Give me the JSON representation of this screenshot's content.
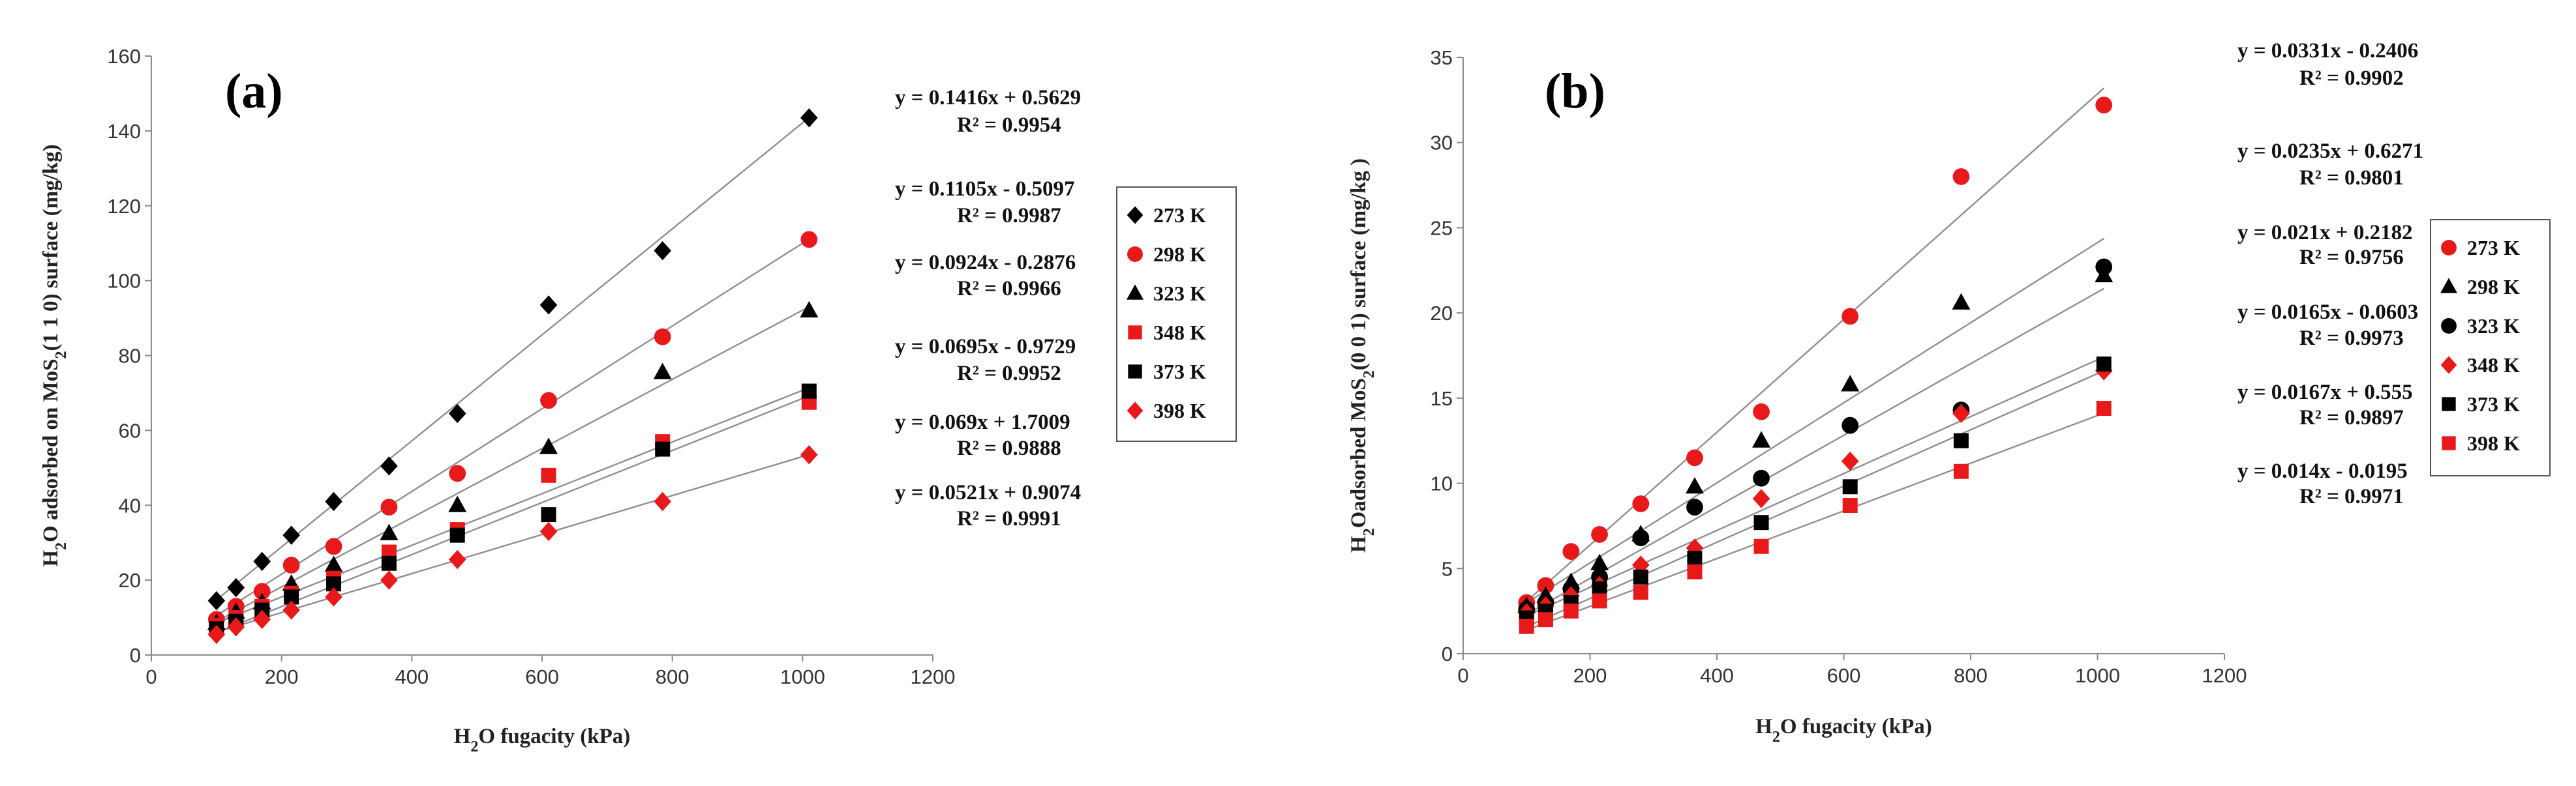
{
  "chart_data": [
    {
      "type": "scatter",
      "panel_label": "(a)",
      "xlabel_parts": [
        "H",
        "2",
        "O fugacity (kPa)"
      ],
      "ylabel_parts": [
        "H",
        "2",
        "O adsorbed on MoS",
        "2",
        "(1 1 0) surface (mg/kg)"
      ],
      "xlim": [
        0,
        1200
      ],
      "ylim": [
        0,
        160
      ],
      "xticks": [
        0,
        200,
        400,
        600,
        800,
        1000,
        1200
      ],
      "yticks": [
        0,
        20,
        40,
        60,
        80,
        100,
        120,
        140,
        160
      ],
      "series": [
        {
          "name": "273 K",
          "marker": "diamond",
          "color": "#000000",
          "x": [
            100,
            130,
            170,
            215,
            280,
            365,
            470,
            610,
            785,
            1010
          ],
          "y": [
            14.5,
            18,
            25,
            32,
            41,
            50.5,
            64.5,
            93.5,
            108,
            143.5
          ],
          "slope": 0.1416,
          "intercept": 0.5629,
          "equation": "y = 0.1416x + 0.5629",
          "r2": "R² = 0.9954"
        },
        {
          "name": "298 K",
          "marker": "circle",
          "color": "#e8191b",
          "x": [
            100,
            130,
            170,
            215,
            280,
            365,
            470,
            610,
            785,
            1010
          ],
          "y": [
            9.5,
            13,
            17,
            24,
            29,
            39.5,
            48.5,
            68,
            85,
            111
          ],
          "slope": 0.1105,
          "intercept": -0.5097,
          "equation": "y = 0.1105x - 0.5097",
          "r2": "R² = 0.9987"
        },
        {
          "name": "323 K",
          "marker": "triangle",
          "color": "#000000",
          "x": [
            100,
            130,
            170,
            215,
            280,
            365,
            470,
            610,
            785,
            1010
          ],
          "y": [
            8.5,
            11.5,
            14,
            19,
            24,
            32.5,
            40,
            55.5,
            75.5,
            92
          ],
          "slope": 0.0924,
          "intercept": -0.2876,
          "equation": "y = 0.0924x - 0.2876",
          "r2": "R² = 0.9966"
        },
        {
          "name": "348 K",
          "marker": "square",
          "color": "#e8191b",
          "x": [
            100,
            130,
            170,
            215,
            280,
            365,
            470,
            610,
            785,
            1010
          ],
          "y": [
            8,
            10,
            13,
            16.5,
            20.5,
            27.5,
            33.5,
            48,
            57,
            67.5
          ],
          "slope": 0.0695,
          "intercept": -0.9729,
          "equation": "y = 0.0695x - 0.9729",
          "r2": "R² = 0.9952"
        },
        {
          "name": "373 K",
          "marker": "square",
          "color": "#000000",
          "x": [
            100,
            130,
            170,
            215,
            280,
            365,
            470,
            610,
            785,
            1010
          ],
          "y": [
            7,
            9,
            12,
            15.5,
            19,
            24.5,
            32,
            37.5,
            55,
            70.5
          ],
          "slope": 0.069,
          "intercept": 1.7009,
          "equation": "y = 0.069x + 1.7009",
          "r2": "R² = 0.9888"
        },
        {
          "name": "398 K",
          "marker": "diamond",
          "color": "#e8191b",
          "x": [
            100,
            130,
            170,
            215,
            280,
            365,
            470,
            610,
            785,
            1010
          ],
          "y": [
            5.5,
            7.5,
            9.5,
            12,
            15.5,
            20,
            25.5,
            33,
            41,
            53.5
          ],
          "slope": 0.0521,
          "intercept": 0.9074,
          "equation": "y = 0.0521x + 0.9074",
          "r2": "R² = 0.9991"
        }
      ]
    },
    {
      "type": "scatter",
      "panel_label": "(b)",
      "xlabel_parts": [
        "H",
        "2",
        "O fugacity (kPa)"
      ],
      "ylabel_parts": [
        "H",
        "2",
        "Oadsorbed MoS",
        "2",
        "(0 0 1) surface (mg/kg )"
      ],
      "xlim": [
        0,
        1200
      ],
      "ylim": [
        0,
        35
      ],
      "xticks": [
        0,
        200,
        400,
        600,
        800,
        1000,
        1200
      ],
      "yticks": [
        0,
        5,
        10,
        15,
        20,
        25,
        30,
        35
      ],
      "series": [
        {
          "name": "273 K",
          "marker": "circle",
          "color": "#e8191b",
          "x": [
            100,
            130,
            170,
            215,
            280,
            365,
            470,
            610,
            785,
            1010
          ],
          "y": [
            3,
            4,
            6,
            7,
            8.8,
            11.5,
            14.2,
            19.8,
            28,
            32.2
          ],
          "slope": 0.0331,
          "intercept": -0.2406,
          "equation": "y = 0.0331x - 0.2406",
          "r2": "R² = 0.9902"
        },
        {
          "name": "298 K",
          "marker": "triangle",
          "color": "#000000",
          "x": [
            100,
            130,
            170,
            215,
            280,
            365,
            470,
            610,
            785,
            1010
          ],
          "y": [
            2.8,
            3.4,
            4.2,
            5.3,
            7,
            9.8,
            12.5,
            15.8,
            20.6,
            22.2
          ],
          "slope": 0.0235,
          "intercept": 0.6271,
          "equation": "y = 0.0235x + 0.6271",
          "r2": "R² = 0.9801"
        },
        {
          "name": "323 K",
          "marker": "circle",
          "color": "#000000",
          "x": [
            100,
            130,
            170,
            215,
            280,
            365,
            470,
            610,
            785,
            1010
          ],
          "y": [
            2.6,
            3,
            3.8,
            4.5,
            6.8,
            8.6,
            10.3,
            13.4,
            14.3,
            22.7
          ],
          "slope": 0.021,
          "intercept": 0.2182,
          "equation": "y = 0.021x + 0.2182",
          "r2": "R² = 0.9756"
        },
        {
          "name": "348 K",
          "marker": "diamond",
          "color": "#e8191b",
          "x": [
            100,
            130,
            170,
            215,
            280,
            365,
            470,
            610,
            785,
            1010
          ],
          "y": [
            2.4,
            2.8,
            3.4,
            4,
            5.2,
            6.2,
            9.1,
            11.3,
            14.1,
            16.6
          ],
          "slope": 0.0165,
          "intercept": -0.0603,
          "equation": "y = 0.0165x - 0.0603",
          "r2": "R² = 0.9973"
        },
        {
          "name": "373 K",
          "marker": "square",
          "color": "#000000",
          "x": [
            100,
            130,
            170,
            215,
            280,
            365,
            470,
            610,
            785,
            1010
          ],
          "y": [
            2.1,
            2.5,
            3,
            3.8,
            4.5,
            5.6,
            7.7,
            9.8,
            12.5,
            17
          ],
          "slope": 0.0167,
          "intercept": 0.555,
          "equation": "y = 0.0167x + 0.555",
          "r2": "R² = 0.9897"
        },
        {
          "name": "398 K",
          "marker": "square",
          "color": "#e8191b",
          "x": [
            100,
            130,
            170,
            215,
            280,
            365,
            470,
            610,
            785,
            1010
          ],
          "y": [
            1.6,
            2,
            2.5,
            3.1,
            3.6,
            4.8,
            6.3,
            8.7,
            10.7,
            14.4
          ],
          "slope": 0.014,
          "intercept": -0.0195,
          "equation": "y = 0.014x - 0.0195",
          "r2": "R² = 0.9971"
        }
      ]
    }
  ]
}
